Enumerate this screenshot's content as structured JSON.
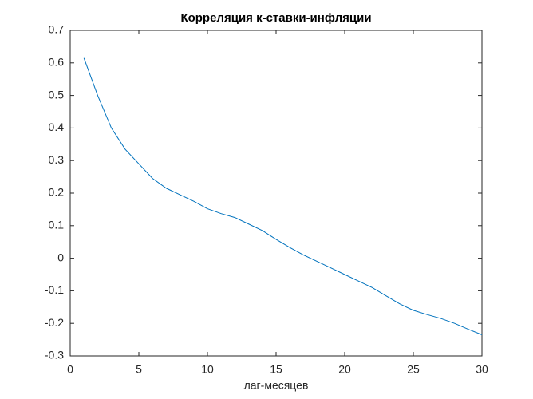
{
  "chart_data": {
    "type": "line",
    "title": "Корреляция к-ставки-инфляции",
    "x_label": "лаг-месяцев",
    "x": [
      1,
      2,
      3,
      4,
      5,
      6,
      7,
      8,
      9,
      10,
      11,
      12,
      13,
      14,
      15,
      16,
      17,
      18,
      19,
      20,
      21,
      22,
      23,
      24,
      25,
      26,
      27,
      28,
      29,
      30
    ],
    "series": [
      {
        "color": "#0072bd",
        "values": [
          0.615,
          0.5,
          0.4,
          0.335,
          0.29,
          0.245,
          0.215,
          0.195,
          0.175,
          0.152,
          0.137,
          0.125,
          0.105,
          0.085,
          0.058,
          0.033,
          0.01,
          -0.01,
          -0.03,
          -0.05,
          -0.07,
          -0.09,
          -0.115,
          -0.14,
          -0.16,
          -0.173,
          -0.185,
          -0.2,
          -0.218,
          -0.235
        ]
      }
    ],
    "xlim": [
      0,
      30
    ],
    "xticks": [
      0,
      5,
      10,
      15,
      20,
      25,
      30
    ],
    "ylim": [
      -0.3,
      0.7
    ],
    "yticks": [
      -0.3,
      -0.2,
      -0.1,
      0,
      0.1,
      0.2,
      0.3,
      0.4,
      0.5,
      0.6,
      0.7
    ],
    "grid": false
  }
}
